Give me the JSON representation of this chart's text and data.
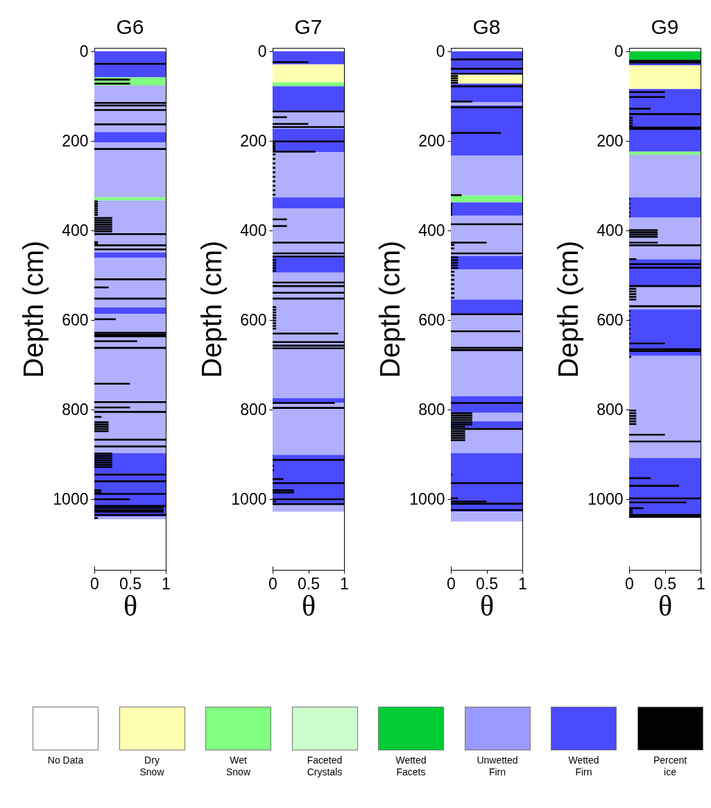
{
  "chart_data": [
    {
      "type": "bar",
      "orientation": "horizontal",
      "title": "G6",
      "xlabel": "θ",
      "ylabel": "Depth (cm)",
      "xlim": [
        0,
        1
      ],
      "xticks": [
        0,
        0.5,
        1
      ],
      "ylim": [
        1150,
        0
      ],
      "yticks": [
        0,
        200,
        400,
        600,
        800,
        1000
      ],
      "bands": [
        {
          "axis": "y",
          "from": 0,
          "to": 58,
          "color": "#4a4aff"
        },
        {
          "axis": "y",
          "from": 58,
          "to": 76,
          "color": "#80ff80"
        },
        {
          "axis": "y",
          "from": 76,
          "to": 180,
          "color": "#b0b0ff"
        },
        {
          "axis": "y",
          "from": 180,
          "to": 203,
          "color": "#4a4aff"
        },
        {
          "axis": "y",
          "from": 203,
          "to": 326,
          "color": "#b0b0ff"
        },
        {
          "axis": "y",
          "from": 326,
          "to": 333,
          "color": "#80ff80"
        },
        {
          "axis": "y",
          "from": 333,
          "to": 449,
          "color": "#b0b0ff"
        },
        {
          "axis": "y",
          "from": 449,
          "to": 461,
          "color": "#4a4aff"
        },
        {
          "axis": "y",
          "from": 461,
          "to": 572,
          "color": "#b0b0ff"
        },
        {
          "axis": "y",
          "from": 572,
          "to": 586,
          "color": "#4a4aff"
        },
        {
          "axis": "y",
          "from": 586,
          "to": 897,
          "color": "#b0b0ff"
        },
        {
          "axis": "y",
          "from": 897,
          "to": 1039,
          "color": "#4a4aff"
        },
        {
          "axis": "y",
          "from": 1039,
          "to": 1045,
          "color": "#b0b0ff"
        },
        {
          "axis": "y",
          "from": 1045,
          "to": 1150,
          "color": "#ffffff"
        }
      ],
      "series": [
        {
          "color": "#000000",
          "x": [
            28,
            63,
            72,
            115,
            121,
            131,
            163,
            218,
            335,
            340,
            345,
            350,
            355,
            360,
            365,
            372,
            377,
            382,
            387,
            392,
            397,
            402,
            408,
            426,
            430,
            433,
            442,
            509,
            527,
            552,
            598,
            628,
            632,
            636,
            647,
            662,
            742,
            783,
            795,
            805,
            816,
            828,
            833,
            838,
            843,
            848,
            867,
            882,
            898,
            903,
            908,
            913,
            918,
            923,
            928,
            945,
            960,
            980,
            985,
            988,
            1000,
            1015,
            1019,
            1024,
            1028,
            1035,
            1042
          ],
          "values": [
            1,
            0.5,
            0.5,
            1,
            1,
            1,
            1,
            1,
            0.05,
            0.05,
            0.05,
            0.05,
            0.05,
            0.05,
            0.05,
            0.25,
            0.25,
            0.25,
            0.25,
            0.25,
            0.25,
            0.25,
            1,
            0.05,
            0.05,
            1,
            1,
            1,
            0.2,
            1,
            0.3,
            1,
            1,
            1,
            0.6,
            1,
            0.5,
            1,
            0.5,
            1,
            0.1,
            0.2,
            0.2,
            0.2,
            0.2,
            0.2,
            1,
            1,
            0.25,
            0.25,
            0.25,
            0.25,
            0.25,
            0.25,
            0.25,
            1,
            1,
            0.1,
            0.1,
            1,
            0.5,
            1,
            0.97,
            0.97,
            0.97,
            1,
            0.05
          ]
        }
      ]
    },
    {
      "type": "bar",
      "orientation": "horizontal",
      "title": "G7",
      "xlabel": "θ",
      "ylabel": "Depth (cm)",
      "xlim": [
        0,
        1
      ],
      "xticks": [
        0,
        0.5,
        1
      ],
      "ylim": [
        1150,
        0
      ],
      "yticks": [
        0,
        200,
        400,
        600,
        800,
        1000
      ],
      "bands": [
        {
          "axis": "y",
          "from": 0,
          "to": 29,
          "color": "#4a4aff"
        },
        {
          "axis": "y",
          "from": 29,
          "to": 69,
          "color": "#ffffb0"
        },
        {
          "axis": "y",
          "from": 69,
          "to": 78,
          "color": "#80ff80"
        },
        {
          "axis": "y",
          "from": 78,
          "to": 132,
          "color": "#4a4aff"
        },
        {
          "axis": "y",
          "from": 132,
          "to": 173,
          "color": "#b0b0ff"
        },
        {
          "axis": "y",
          "from": 173,
          "to": 225,
          "color": "#4a4aff"
        },
        {
          "axis": "y",
          "from": 225,
          "to": 326,
          "color": "#b0b0ff"
        },
        {
          "axis": "y",
          "from": 326,
          "to": 351,
          "color": "#4a4aff"
        },
        {
          "axis": "y",
          "from": 351,
          "to": 460,
          "color": "#b0b0ff"
        },
        {
          "axis": "y",
          "from": 460,
          "to": 494,
          "color": "#4a4aff"
        },
        {
          "axis": "y",
          "from": 494,
          "to": 774,
          "color": "#b0b0ff"
        },
        {
          "axis": "y",
          "from": 774,
          "to": 785,
          "color": "#4a4aff"
        },
        {
          "axis": "y",
          "from": 785,
          "to": 901,
          "color": "#b0b0ff"
        },
        {
          "axis": "y",
          "from": 901,
          "to": 1012,
          "color": "#4a4aff"
        },
        {
          "axis": "y",
          "from": 1012,
          "to": 1028,
          "color": "#b0b0ff"
        },
        {
          "axis": "y",
          "from": 1028,
          "to": 1150,
          "color": "#ffffff"
        }
      ],
      "series": [
        {
          "color": "#000000",
          "x": [
            24,
            134,
            147,
            162,
            169,
            201,
            206,
            211,
            216,
            221,
            224,
            230,
            240,
            250,
            260,
            270,
            280,
            290,
            300,
            310,
            320,
            375,
            390,
            427,
            451,
            458,
            466,
            472,
            478,
            484,
            490,
            516,
            524,
            539,
            552,
            571,
            577,
            583,
            589,
            595,
            601,
            607,
            613,
            619,
            630,
            649,
            657,
            663,
            785,
            796,
            912,
            925,
            935,
            955,
            964,
            980,
            985,
            1000,
            1005,
            1011
          ],
          "values": [
            0.5,
            1,
            0.2,
            0.5,
            1,
            1,
            0.04,
            0.04,
            0.04,
            0.04,
            0.6,
            0.04,
            0.04,
            0.04,
            0.04,
            0.04,
            0.04,
            0.04,
            0.04,
            0.04,
            0.04,
            0.2,
            0.2,
            1,
            1,
            1,
            0.05,
            0.05,
            0.05,
            0.05,
            0.05,
            1,
            1,
            1,
            1,
            0.05,
            0.05,
            0.05,
            0.05,
            0.05,
            0.05,
            0.05,
            0.05,
            0.05,
            0.92,
            1,
            1,
            1,
            0.87,
            1,
            1,
            0.02,
            0.02,
            0.15,
            1,
            0.3,
            0.3,
            1,
            0.05,
            1
          ]
        }
      ]
    },
    {
      "type": "bar",
      "orientation": "horizontal",
      "title": "G8",
      "xlabel": "θ",
      "ylabel": "Depth (cm)",
      "xlim": [
        0,
        1
      ],
      "xticks": [
        0,
        0.5,
        1
      ],
      "ylim": [
        1150,
        0
      ],
      "yticks": [
        0,
        200,
        400,
        600,
        800,
        1000
      ],
      "bands": [
        {
          "axis": "y",
          "from": 0,
          "to": 50,
          "color": "#4a4aff"
        },
        {
          "axis": "y",
          "from": 50,
          "to": 54,
          "color": "#ffffff"
        },
        {
          "axis": "y",
          "from": 54,
          "to": 72,
          "color": "#ffffb0"
        },
        {
          "axis": "y",
          "from": 72,
          "to": 113,
          "color": "#4a4aff"
        },
        {
          "axis": "y",
          "from": 113,
          "to": 121,
          "color": "#b0b0ff"
        },
        {
          "axis": "y",
          "from": 121,
          "to": 233,
          "color": "#4a4aff"
        },
        {
          "axis": "y",
          "from": 233,
          "to": 322,
          "color": "#b0b0ff"
        },
        {
          "axis": "y",
          "from": 322,
          "to": 337,
          "color": "#80ff80"
        },
        {
          "axis": "y",
          "from": 337,
          "to": 367,
          "color": "#4a4aff"
        },
        {
          "axis": "y",
          "from": 367,
          "to": 457,
          "color": "#b0b0ff"
        },
        {
          "axis": "y",
          "from": 457,
          "to": 487,
          "color": "#4a4aff"
        },
        {
          "axis": "y",
          "from": 487,
          "to": 554,
          "color": "#b0b0ff"
        },
        {
          "axis": "y",
          "from": 554,
          "to": 587,
          "color": "#4a4aff"
        },
        {
          "axis": "y",
          "from": 587,
          "to": 770,
          "color": "#b0b0ff"
        },
        {
          "axis": "y",
          "from": 770,
          "to": 807,
          "color": "#4a4aff"
        },
        {
          "axis": "y",
          "from": 807,
          "to": 826,
          "color": "#b0b0ff"
        },
        {
          "axis": "y",
          "from": 826,
          "to": 841,
          "color": "#4a4aff"
        },
        {
          "axis": "y",
          "from": 841,
          "to": 897,
          "color": "#b0b0ff"
        },
        {
          "axis": "y",
          "from": 897,
          "to": 1028,
          "color": "#4a4aff"
        },
        {
          "axis": "y",
          "from": 1028,
          "to": 1050,
          "color": "#b0b0ff"
        },
        {
          "axis": "y",
          "from": 1050,
          "to": 1150,
          "color": "#ffffff"
        }
      ],
      "series": [
        {
          "color": "#000000",
          "x": [
            18,
            39,
            50,
            55,
            60,
            65,
            70,
            78,
            112,
            125,
            182,
            321,
            340,
            345,
            350,
            355,
            360,
            365,
            386,
            427,
            432,
            440,
            451,
            460,
            466,
            472,
            478,
            484,
            492,
            500,
            510,
            520,
            530,
            540,
            550,
            587,
            625,
            662,
            667,
            785,
            808,
            813,
            818,
            823,
            828,
            833,
            838,
            843,
            848,
            853,
            858,
            863,
            868,
            945,
            964,
            998,
            1005,
            1010,
            1024
          ],
          "values": [
            1,
            1,
            1,
            0.1,
            0.1,
            0.1,
            0.1,
            1,
            0.3,
            1,
            0.7,
            0.15,
            0.02,
            0.02,
            0.02,
            0.02,
            0.02,
            0.02,
            1,
            0.5,
            0.05,
            0.05,
            1,
            0.1,
            0.1,
            0.1,
            0.1,
            0.1,
            0.05,
            0.05,
            0.05,
            0.05,
            0.05,
            0.05,
            0.05,
            1,
            0.97,
            1,
            1,
            1,
            0.3,
            0.3,
            0.3,
            0.3,
            0.3,
            0.3,
            0.2,
            1,
            0.2,
            0.2,
            0.2,
            0.2,
            0.2,
            0.02,
            1,
            0.1,
            0.5,
            1,
            1
          ]
        }
      ]
    },
    {
      "type": "bar",
      "orientation": "horizontal",
      "title": "G9",
      "xlabel": "θ",
      "ylabel": "Depth (cm)",
      "xlim": [
        0,
        1
      ],
      "xticks": [
        0,
        0.5,
        1
      ],
      "ylim": [
        1150,
        0
      ],
      "yticks": [
        0,
        200,
        400,
        600,
        800,
        1000
      ],
      "bands": [
        {
          "axis": "y",
          "from": 0,
          "to": 20,
          "color": "#00cc33"
        },
        {
          "axis": "y",
          "from": 20,
          "to": 31,
          "color": "#4a4aff"
        },
        {
          "axis": "y",
          "from": 31,
          "to": 84,
          "color": "#ffffb0"
        },
        {
          "axis": "y",
          "from": 84,
          "to": 224,
          "color": "#4a4aff"
        },
        {
          "axis": "y",
          "from": 224,
          "to": 231,
          "color": "#80ff80"
        },
        {
          "axis": "y",
          "from": 231,
          "to": 326,
          "color": "#b0b0ff"
        },
        {
          "axis": "y",
          "from": 326,
          "to": 371,
          "color": "#4a4aff"
        },
        {
          "axis": "y",
          "from": 371,
          "to": 464,
          "color": "#b0b0ff"
        },
        {
          "axis": "y",
          "from": 464,
          "to": 524,
          "color": "#4a4aff"
        },
        {
          "axis": "y",
          "from": 524,
          "to": 576,
          "color": "#b0b0ff"
        },
        {
          "axis": "y",
          "from": 576,
          "to": 680,
          "color": "#4a4aff"
        },
        {
          "axis": "y",
          "from": 680,
          "to": 908,
          "color": "#b0b0ff"
        },
        {
          "axis": "y",
          "from": 908,
          "to": 1042,
          "color": "#4a4aff"
        },
        {
          "axis": "y",
          "from": 1042,
          "to": 1150,
          "color": "#ffffff"
        }
      ],
      "series": [
        {
          "color": "#000000",
          "x": [
            21,
            25,
            91,
            102,
            128,
            140,
            148,
            154,
            160,
            166,
            170,
            173,
            330,
            340,
            350,
            360,
            368,
            399,
            404,
            409,
            414,
            427,
            433,
            464,
            475,
            483,
            524,
            530,
            536,
            542,
            548,
            554,
            569,
            580,
            590,
            600,
            610,
            620,
            630,
            640,
            652,
            665,
            669,
            682,
            802,
            808,
            814,
            820,
            826,
            832,
            856,
            871,
            953,
            970,
            998,
            1007,
            1020,
            1025,
            1030,
            1035,
            1039
          ],
          "values": [
            1,
            1,
            0.5,
            0.5,
            0.3,
            1,
            0.05,
            0.05,
            0.05,
            0.05,
            1,
            1,
            0.02,
            0.02,
            0.02,
            0.02,
            0.02,
            0.4,
            0.4,
            0.4,
            0.4,
            0.4,
            1,
            0.1,
            1,
            1,
            1,
            0.1,
            0.1,
            0.1,
            0.1,
            0.1,
            1,
            0.02,
            0.02,
            0.02,
            0.02,
            0.02,
            0.02,
            0.02,
            0.5,
            1,
            1,
            0.03,
            0.1,
            0.1,
            0.1,
            0.1,
            0.1,
            0.1,
            0.5,
            1,
            0.3,
            0.7,
            1,
            0.8,
            0.2,
            0.05,
            0.05,
            1,
            1
          ]
        }
      ]
    },
    {
      "type": "other",
      "categories": [
        "No Data",
        "Dry\nSnow",
        "Wet\nSnow",
        "Faceted\nCrystals",
        "Wetted\nFacets",
        "Unwetted\nFirn",
        "Wetted\nFirn",
        "Percent\nice"
      ],
      "colors": [
        "#ffffff",
        "#ffffb0",
        "#80ff80",
        "#ccffcc",
        "#00cc33",
        "#9999ff",
        "#4a4aff",
        "#000000"
      ]
    }
  ]
}
